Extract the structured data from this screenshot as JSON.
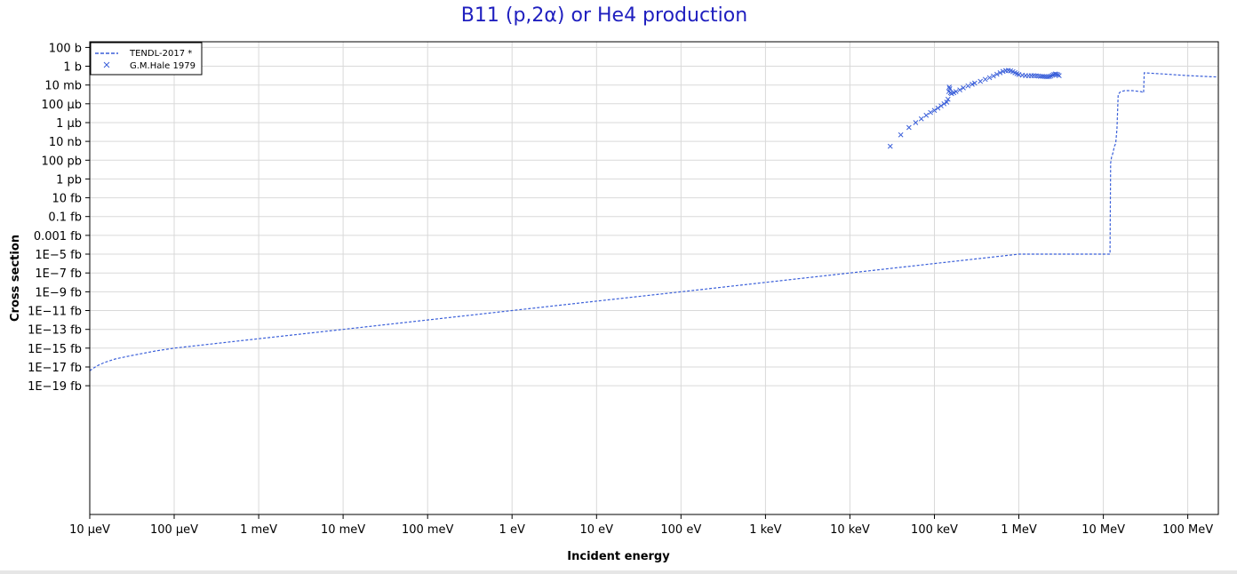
{
  "chart_data": {
    "type": "line",
    "title": "B11 (p,2α) or He4 production",
    "xlabel": "Incident energy",
    "ylabel": "Cross section",
    "x_scale": "log",
    "y_scale": "log",
    "xlim_eV": [
      1e-05,
      230000000.0
    ],
    "ylim_barn": [
      2e-48,
      400.0
    ],
    "grid": true,
    "legend_position": "top-left",
    "x_ticks": [
      {
        "value": 1e-05,
        "label": "10 μeV"
      },
      {
        "value": 0.0001,
        "label": "100 μeV"
      },
      {
        "value": 0.001,
        "label": "1 meV"
      },
      {
        "value": 0.01,
        "label": "10 meV"
      },
      {
        "value": 0.1,
        "label": "100 meV"
      },
      {
        "value": 1,
        "label": "1 eV"
      },
      {
        "value": 10,
        "label": "10 eV"
      },
      {
        "value": 100,
        "label": "100 eV"
      },
      {
        "value": 1000.0,
        "label": "1 keV"
      },
      {
        "value": 10000.0,
        "label": "10 keV"
      },
      {
        "value": 100000.0,
        "label": "100 keV"
      },
      {
        "value": 1000000.0,
        "label": "1 MeV"
      },
      {
        "value": 10000000.0,
        "label": "10 MeV"
      },
      {
        "value": 100000000.0,
        "label": "100 MeV"
      }
    ],
    "y_ticks": [
      {
        "value": 100,
        "label": "100 b"
      },
      {
        "value": 1,
        "label": "1 b"
      },
      {
        "value": 0.01,
        "label": "10 mb"
      },
      {
        "value": 0.0001,
        "label": "100 μb"
      },
      {
        "value": 1e-06,
        "label": "1 μb"
      },
      {
        "value": 1e-08,
        "label": "10 nb"
      },
      {
        "value": 1e-10,
        "label": "100 pb"
      },
      {
        "value": 1e-12,
        "label": "1 pb"
      },
      {
        "value": 1e-14,
        "label": "10 fb"
      },
      {
        "value": 1e-16,
        "label": "0.1 fb"
      },
      {
        "value": 1e-18,
        "label": "0.001 fb"
      },
      {
        "value": 1e-20,
        "label": "1E−5 fb"
      },
      {
        "value": 1e-22,
        "label": "1E−7 fb"
      },
      {
        "value": 1e-24,
        "label": "1E−9 fb"
      },
      {
        "value": 1e-26,
        "label": "1E−11 fb"
      },
      {
        "value": 1e-28,
        "label": "1E−13 fb"
      },
      {
        "value": 1e-30,
        "label": "1E−15 fb"
      },
      {
        "value": 1e-32,
        "label": "1E−17 fb"
      },
      {
        "value": 1e-34,
        "label": "1E−19 fb"
      }
    ],
    "series": [
      {
        "name": "TENDL-2017 *",
        "style": "dashed-line",
        "color": "#3a5fd9",
        "x": [
          1e-05,
          1.2e-05,
          1.5e-05,
          2e-05,
          3e-05,
          4e-05,
          6e-05,
          0.0001,
          0.001,
          0.01,
          0.1,
          1,
          10,
          100,
          1000.0,
          10000.0,
          100000.0,
          1000000.0,
          3000000.0,
          6000000.0,
          12000000.0,
          12200000.0,
          12500000.0,
          13000000.0,
          13500000.0,
          14000000.0,
          14500000.0,
          15000000.0,
          16000000.0,
          18000000.0,
          22000000.0,
          28000000.0,
          30000000.0,
          30500000.0,
          50000000.0,
          100000000.0,
          230000000.0
        ],
        "y": [
          4e-33,
          1.2e-32,
          3e-32,
          7e-32,
          1.5e-31,
          2.5e-31,
          5e-31,
          1e-30,
          1e-29,
          1e-28,
          1e-27,
          1e-26,
          1e-25,
          1e-24,
          1e-23,
          1e-22,
          1e-21,
          1e-20,
          1e-20,
          1e-20,
          1e-20,
          5e-11,
          2e-10,
          6e-10,
          3e-09,
          6e-09,
          2e-07,
          0.001,
          0.002,
          0.0025,
          0.0025,
          0.002,
          0.0015,
          0.2,
          0.15,
          0.1,
          0.07
        ]
      },
      {
        "name": "G.M.Hale 1979",
        "style": "x-markers",
        "color": "#3a5fd9",
        "x": [
          30000.0,
          40000.0,
          50000.0,
          60000.0,
          70000.0,
          80000.0,
          90000.0,
          100000.0,
          110000.0,
          120000.0,
          130000.0,
          140000.0,
          145000.0,
          148000.0,
          150000.0,
          152000.0,
          155000.0,
          160000.0,
          170000.0,
          180000.0,
          200000.0,
          220000.0,
          250000.0,
          280000.0,
          300000.0,
          350000.0,
          400000.0,
          450000.0,
          500000.0,
          550000.0,
          600000.0,
          650000.0,
          700000.0,
          750000.0,
          800000.0,
          850000.0,
          900000.0,
          950000.0,
          1000000.0,
          1100000.0,
          1200000.0,
          1300000.0,
          1400000.0,
          1500000.0,
          1600000.0,
          1700000.0,
          1800000.0,
          1900000.0,
          2000000.0,
          2100000.0,
          2200000.0,
          2300000.0,
          2400000.0,
          2500000.0,
          2600000.0,
          2700000.0,
          2800000.0,
          2900000.0,
          3000000.0
        ],
        "y": [
          3e-09,
          5e-08,
          3e-07,
          1e-06,
          2.5e-06,
          6e-06,
          1.2e-05,
          2e-05,
          3.5e-05,
          6e-05,
          0.0001,
          0.00015,
          0.0003,
          0.002,
          0.006,
          0.004,
          0.0015,
          0.0012,
          0.0015,
          0.002,
          0.003,
          0.005,
          0.008,
          0.012,
          0.016,
          0.025,
          0.04,
          0.06,
          0.09,
          0.14,
          0.2,
          0.28,
          0.34,
          0.36,
          0.32,
          0.26,
          0.2,
          0.16,
          0.13,
          0.11,
          0.1,
          0.095,
          0.1,
          0.1,
          0.095,
          0.09,
          0.085,
          0.085,
          0.08,
          0.075,
          0.075,
          0.08,
          0.09,
          0.11,
          0.13,
          0.15,
          0.14,
          0.12,
          0.1
        ]
      }
    ]
  }
}
